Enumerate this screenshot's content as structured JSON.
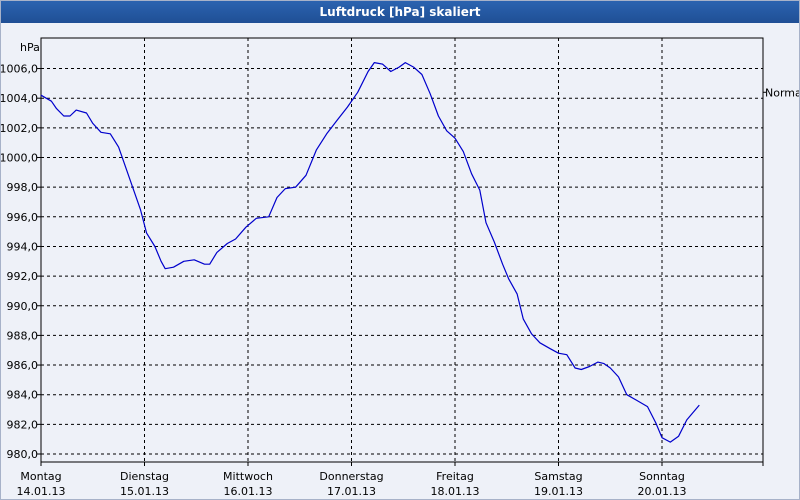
{
  "window": {
    "title": "Luftdruck [hPa] skaliert"
  },
  "chart_data": {
    "type": "line",
    "title": "Luftdruck [hPa] skaliert",
    "ylabel": "hPa",
    "ylim": [
      980,
      1007
    ],
    "xlim": [
      0,
      7
    ],
    "y_ticks": [
      "980,0",
      "982,0",
      "984,0",
      "986,0",
      "988,0",
      "990,0",
      "992,0",
      "994,0",
      "996,0",
      "998,0",
      "1000,0",
      "1002,0",
      "1004,0",
      "1006,0"
    ],
    "x_ticks": [
      {
        "day": "Montag",
        "date": "14.01.13"
      },
      {
        "day": "Dienstag",
        "date": "15.01.13"
      },
      {
        "day": "Mittwoch",
        "date": "16.01.13"
      },
      {
        "day": "Donnerstag",
        "date": "17.01.13"
      },
      {
        "day": "Freitag",
        "date": "18.01.13"
      },
      {
        "day": "Samstag",
        "date": "19.01.13"
      },
      {
        "day": "Sonntag",
        "date": "20.01.13"
      }
    ],
    "grid": true,
    "reference_line": {
      "label": "Normal",
      "value": 1004.4
    },
    "series": [
      {
        "color": "#0000cc",
        "points": [
          [
            0.0,
            1004.2
          ],
          [
            0.1,
            1003.8
          ],
          [
            0.15,
            1003.3
          ],
          [
            0.22,
            1002.8
          ],
          [
            0.28,
            1002.8
          ],
          [
            0.34,
            1003.2
          ],
          [
            0.44,
            1003.0
          ],
          [
            0.5,
            1002.3
          ],
          [
            0.58,
            1001.7
          ],
          [
            0.67,
            1001.6
          ],
          [
            0.75,
            1000.7
          ],
          [
            0.85,
            998.7
          ],
          [
            0.96,
            996.5
          ],
          [
            1.02,
            994.9
          ],
          [
            1.1,
            994.0
          ],
          [
            1.16,
            993.0
          ],
          [
            1.2,
            992.5
          ],
          [
            1.28,
            992.6
          ],
          [
            1.38,
            993.0
          ],
          [
            1.48,
            993.1
          ],
          [
            1.58,
            992.8
          ],
          [
            1.63,
            992.8
          ],
          [
            1.7,
            993.6
          ],
          [
            1.8,
            994.2
          ],
          [
            1.88,
            994.5
          ],
          [
            1.98,
            995.3
          ],
          [
            2.08,
            995.9
          ],
          [
            2.2,
            996.0
          ],
          [
            2.28,
            997.3
          ],
          [
            2.36,
            997.9
          ],
          [
            2.46,
            998.0
          ],
          [
            2.56,
            998.8
          ],
          [
            2.66,
            1000.5
          ],
          [
            2.76,
            1001.6
          ],
          [
            2.86,
            1002.5
          ],
          [
            2.96,
            1003.4
          ],
          [
            3.06,
            1004.4
          ],
          [
            3.16,
            1005.8
          ],
          [
            3.22,
            1006.4
          ],
          [
            3.3,
            1006.3
          ],
          [
            3.38,
            1005.8
          ],
          [
            3.46,
            1006.1
          ],
          [
            3.52,
            1006.4
          ],
          [
            3.6,
            1006.1
          ],
          [
            3.68,
            1005.6
          ],
          [
            3.76,
            1004.3
          ],
          [
            3.84,
            1002.8
          ],
          [
            3.92,
            1001.8
          ],
          [
            4.0,
            1001.3
          ],
          [
            4.08,
            1000.4
          ],
          [
            4.16,
            998.9
          ],
          [
            4.24,
            997.8
          ],
          [
            4.3,
            995.6
          ],
          [
            4.38,
            994.3
          ],
          [
            4.46,
            992.8
          ],
          [
            4.52,
            991.8
          ],
          [
            4.6,
            990.8
          ],
          [
            4.66,
            989.1
          ],
          [
            4.74,
            988.1
          ],
          [
            4.82,
            987.5
          ],
          [
            4.92,
            987.1
          ],
          [
            5.0,
            986.8
          ],
          [
            5.08,
            986.7
          ],
          [
            5.16,
            985.8
          ],
          [
            5.22,
            985.7
          ],
          [
            5.3,
            985.9
          ],
          [
            5.38,
            986.2
          ],
          [
            5.44,
            986.1
          ],
          [
            5.5,
            985.8
          ],
          [
            5.58,
            985.2
          ],
          [
            5.66,
            984.0
          ],
          [
            5.76,
            983.6
          ],
          [
            5.86,
            983.2
          ],
          [
            5.94,
            982.1
          ],
          [
            6.0,
            981.1
          ],
          [
            6.08,
            980.8
          ],
          [
            6.16,
            981.2
          ],
          [
            6.24,
            982.3
          ],
          [
            6.36,
            983.3
          ]
        ]
      }
    ]
  }
}
